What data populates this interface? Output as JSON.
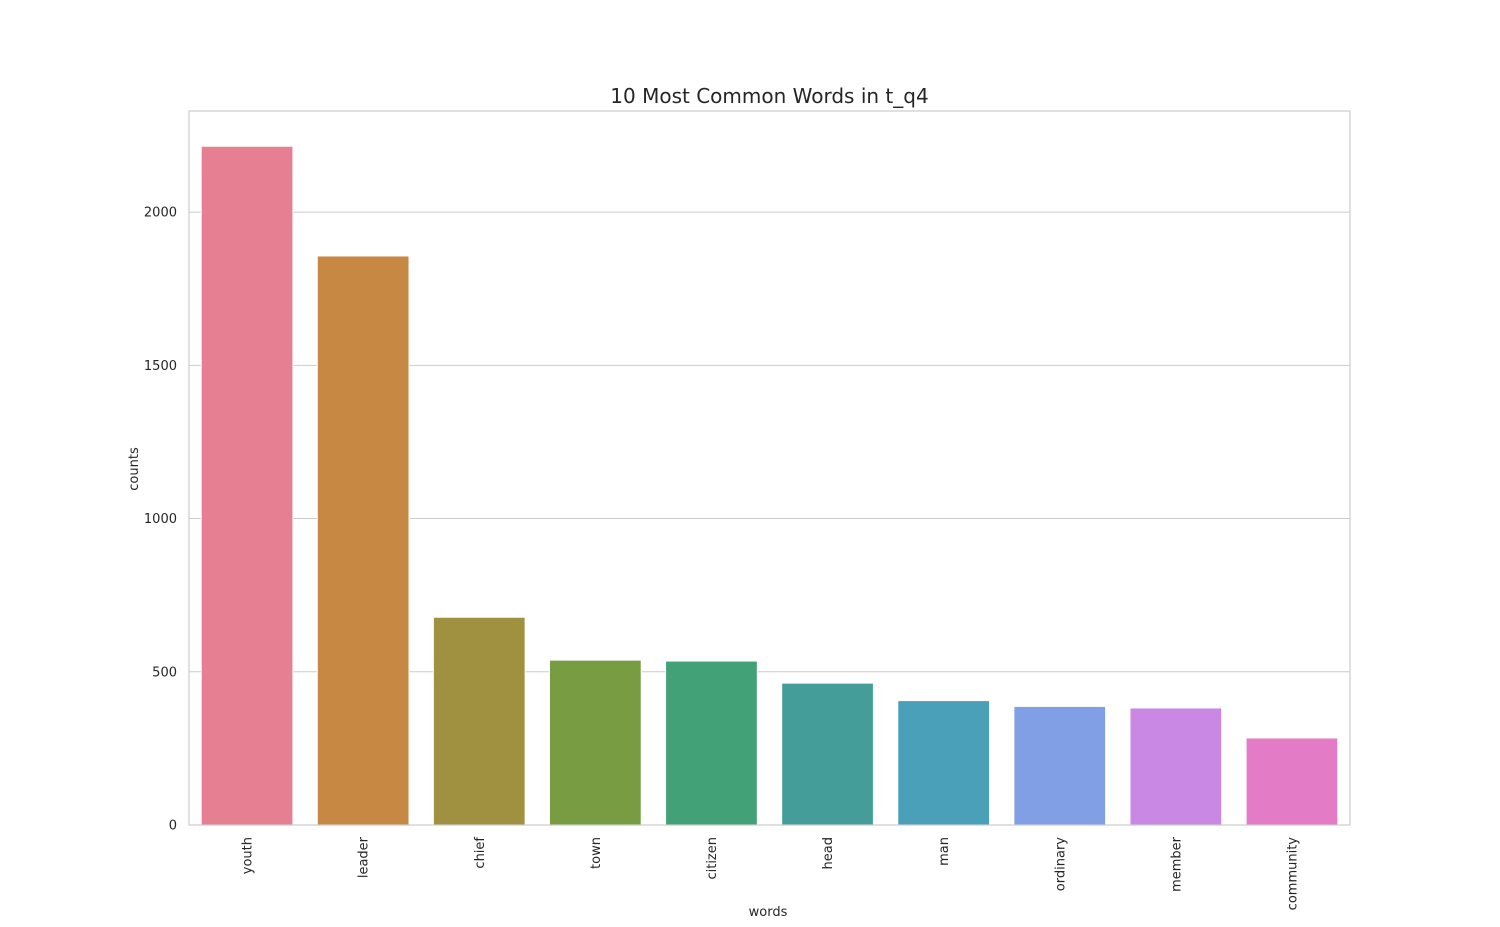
{
  "chart_data": {
    "type": "bar",
    "title": "10 Most Common Words in t_q4",
    "xlabel": "words",
    "ylabel": "counts",
    "categories": [
      "youth",
      "leader",
      "chief",
      "town",
      "citizen",
      "head",
      "man",
      "ordinary",
      "member",
      "community"
    ],
    "values": [
      2215,
      1857,
      678,
      538,
      535,
      463,
      406,
      387,
      382,
      284
    ],
    "colors": [
      "#e77f92",
      "#c68843",
      "#a09141",
      "#789c42",
      "#42a176",
      "#459d9a",
      "#4a9fb9",
      "#819fe4",
      "#c888e4",
      "#e47bc6"
    ],
    "ylim": [
      0,
      2330
    ],
    "yticks": [
      0,
      500,
      1000,
      1500,
      2000
    ],
    "grid": true,
    "legend": "none"
  }
}
